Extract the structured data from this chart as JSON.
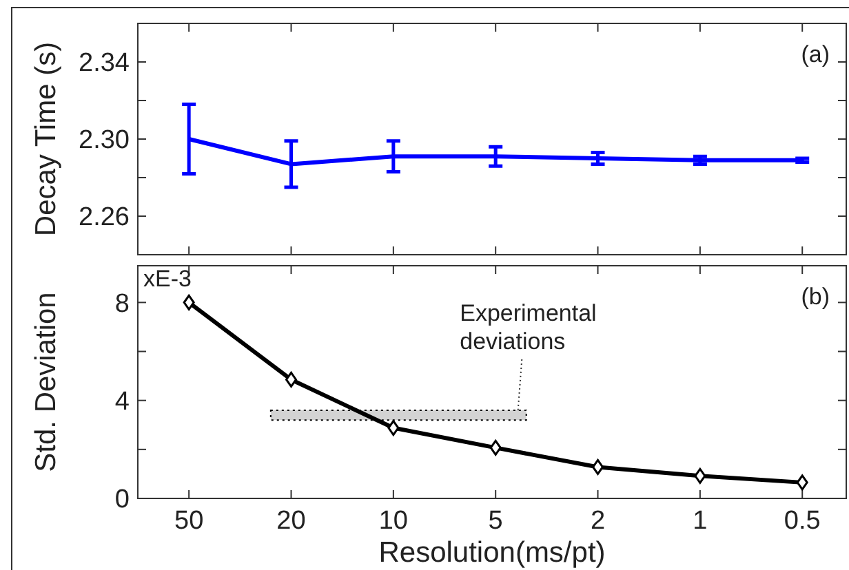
{
  "chart_data": [
    {
      "type": "line",
      "ylabel": "Decay Time (s)",
      "categories": [
        "50",
        "20",
        "10",
        "5",
        "2",
        "1",
        "0.5"
      ],
      "series": [
        {
          "color": "#0000ff",
          "values": [
            2.3,
            2.287,
            2.291,
            2.291,
            2.29,
            2.289,
            2.289
          ],
          "errors": [
            [
              2.282,
              2.318
            ],
            [
              2.275,
              2.299
            ],
            [
              2.283,
              2.299
            ],
            [
              2.286,
              2.296
            ],
            [
              2.287,
              2.293
            ],
            [
              2.287,
              2.291
            ],
            [
              2.288,
              2.29
            ]
          ]
        }
      ],
      "ylim": [
        2.24,
        2.36
      ],
      "yticks": [
        2.26,
        {
          "value": 2.28,
          "label": null
        },
        {
          "value": 2.3,
          "label": "2.30"
        },
        {
          "value": 2.32,
          "label": null
        },
        2.34
      ],
      "tick_labels": "y",
      "marker": "none",
      "annotations": [
        "(a)"
      ]
    },
    {
      "type": "line",
      "xlabel": "Resolution(ms/pt)",
      "ylabel": "Std. Deviation",
      "categories": [
        "50",
        "20",
        "10",
        "5",
        "2",
        "1",
        "0.5"
      ],
      "series": [
        {
          "color": "#000000",
          "values": [
            8.0,
            4.85,
            2.88,
            2.07,
            1.28,
            0.92,
            0.65
          ],
          "marker": "diamond"
        }
      ],
      "bands": [
        {
          "axis": "y",
          "from": 3.2,
          "to": 3.6,
          "label": "Experimental deviations",
          "color": "#d3d3d3"
        }
      ],
      "ylim": [
        0,
        9.5
      ],
      "yticks": [
        0,
        {
          "value": 2,
          "label": null
        },
        4,
        {
          "value": 6,
          "label": null
        },
        8
      ],
      "annotations": [
        "xE-3",
        "(b)"
      ]
    }
  ]
}
